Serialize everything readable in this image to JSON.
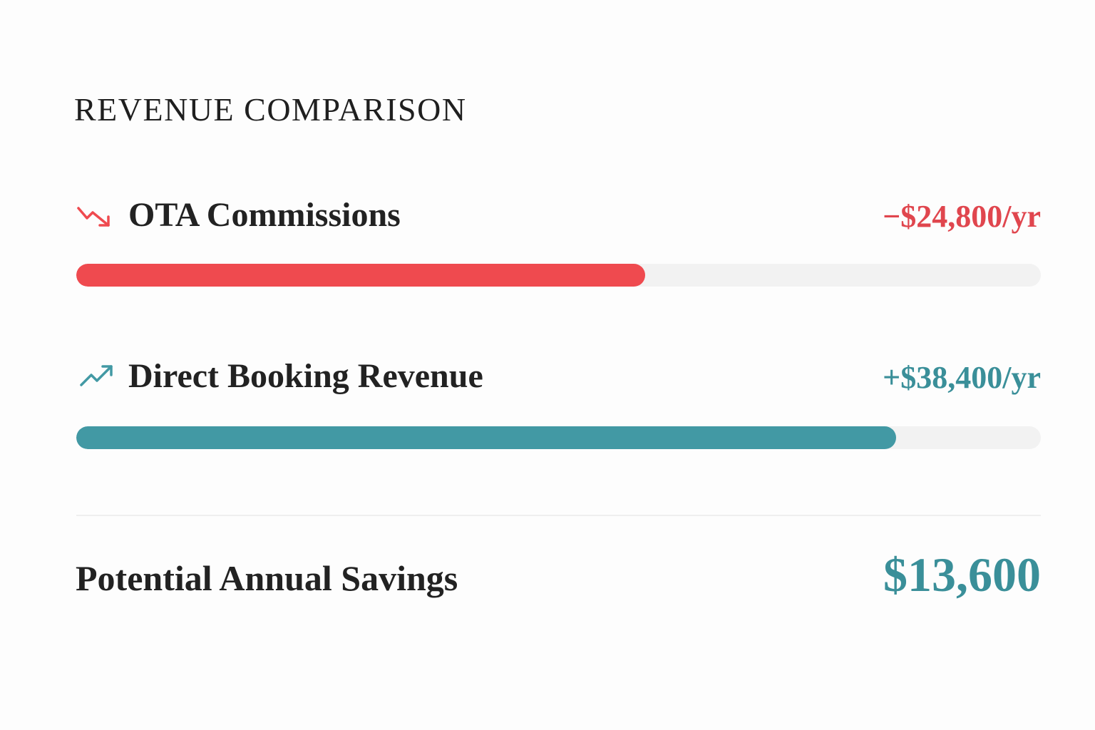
{
  "header": {
    "title": "REVENUE COMPARISON"
  },
  "rows": [
    {
      "label": "OTA Commissions",
      "amount": "−$24,800/yr",
      "bar_percent": 59,
      "color": "#ef4a4f",
      "text_color": "#e0464e"
    },
    {
      "label": "Direct Booking Revenue",
      "amount": "+$38,400/yr",
      "bar_percent": 85,
      "color": "#4299a4",
      "text_color": "#3a8f99"
    }
  ],
  "total": {
    "label": "Potential Annual Savings",
    "amount": "$13,600",
    "color": "#3a8f99"
  }
}
